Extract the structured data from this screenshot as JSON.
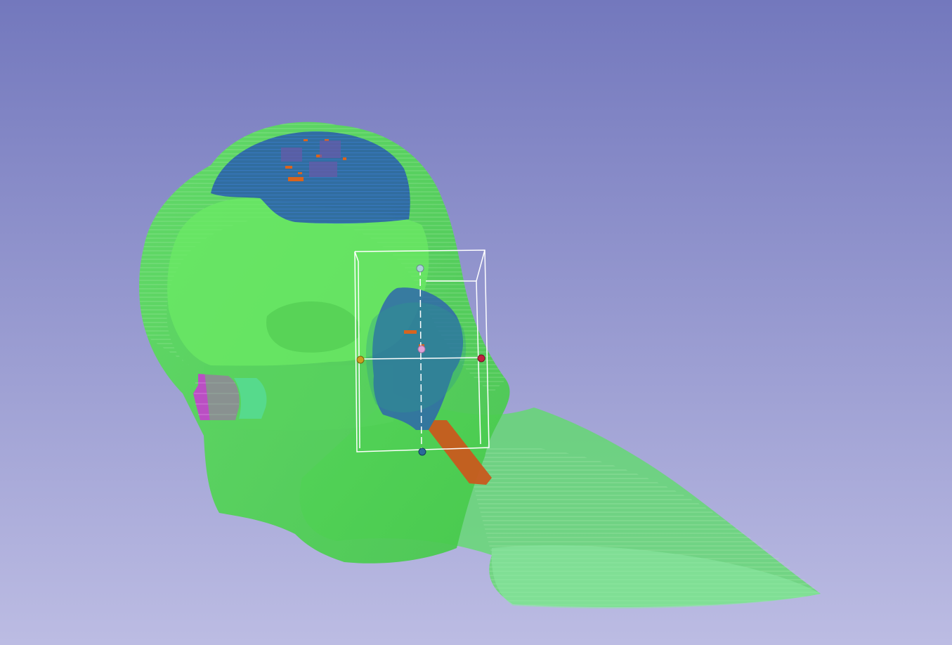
{
  "viewer": {
    "background_top": "#7378bd",
    "background_bottom": "#bcbce3"
  },
  "segments": [
    {
      "name": "head-skin",
      "color": "#4ed850"
    },
    {
      "name": "brain",
      "color": "#2a5fa8"
    },
    {
      "name": "ear-left",
      "color": "#c048c8"
    },
    {
      "name": "ear-right",
      "color": "#55e0c0"
    },
    {
      "name": "tumor-region",
      "color": "#2c60b0"
    },
    {
      "name": "vessel",
      "color": "#c85a1e"
    }
  ],
  "roi_box": {
    "color": "#ffffff",
    "handles": {
      "top": "#a8d0d8",
      "center": "#e0a0d8",
      "left": "#c8a020",
      "right": "#c02040",
      "bottom": "#2a6a9a"
    }
  }
}
